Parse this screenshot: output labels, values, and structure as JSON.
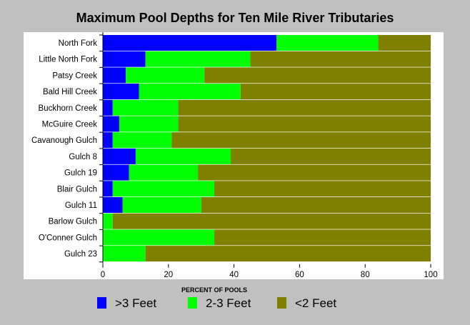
{
  "chart_data": {
    "type": "bar",
    "orientation": "horizontal",
    "stacked": true,
    "title": "Maximum Pool Depths for Ten Mile River Tributaries",
    "xlabel": "PERCENT OF POOLS",
    "ylabel": "",
    "xlim": [
      0,
      100
    ],
    "xticks": [
      0,
      20,
      40,
      60,
      80,
      100
    ],
    "grid": false,
    "legend_position": "bottom",
    "categories": [
      "North Fork",
      "Little North Fork",
      "Patsy Creek",
      "Bald Hill Creek",
      "Buckhorn Creek",
      "McGuire Creek",
      "Cavanough Gulch",
      "Gulch 8",
      "Gulch 19",
      "Blair Gulch",
      "Gulch 11",
      "Barlow Gulch",
      "O'Conner Gulch",
      "Gulch 23"
    ],
    "series": [
      {
        "name": ">3 Feet",
        "color": "#0000ff",
        "values": [
          53,
          13,
          7,
          11,
          3,
          5,
          3,
          10,
          8,
          3,
          6,
          0,
          0,
          0
        ]
      },
      {
        "name": "2-3 Feet",
        "color": "#00ff00",
        "values": [
          31,
          32,
          24,
          31,
          20,
          18,
          18,
          29,
          21,
          31,
          24,
          3,
          34,
          13
        ]
      },
      {
        "name": "<2 Feet",
        "color": "#808000",
        "values": [
          16,
          55,
          69,
          58,
          77,
          77,
          79,
          61,
          71,
          66,
          70,
          97,
          66,
          87
        ]
      }
    ]
  }
}
